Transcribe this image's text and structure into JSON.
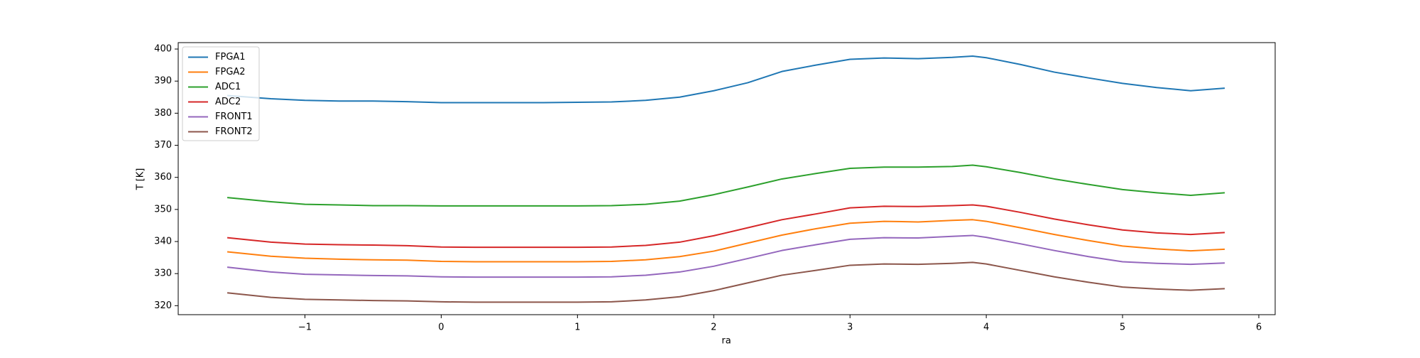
{
  "chart_data": {
    "type": "line",
    "xlabel": "ra",
    "ylabel": "T [K]",
    "x": [
      -1.57,
      -1.25,
      -1.0,
      -0.75,
      -0.5,
      -0.25,
      0,
      0.25,
      0.5,
      0.75,
      1.0,
      1.25,
      1.5,
      1.75,
      2.0,
      2.25,
      2.5,
      2.75,
      3.0,
      3.25,
      3.5,
      3.75,
      3.9,
      4.0,
      4.25,
      4.5,
      4.75,
      5.0,
      5.25,
      5.5,
      5.75
    ],
    "series": [
      {
        "name": "FPGA1",
        "color": "#1f77b4",
        "values": [
          385.5,
          384.5,
          384,
          383.8,
          383.8,
          383.6,
          383.3,
          383.3,
          383.3,
          383.3,
          383.4,
          383.5,
          384,
          385,
          387,
          389.5,
          393,
          395,
          396.8,
          397.2,
          397,
          397.4,
          397.8,
          397.3,
          395.2,
          392.8,
          391,
          389.3,
          388,
          387,
          387.8
        ]
      },
      {
        "name": "FPGA2",
        "color": "#ff7f0e",
        "values": [
          336.8,
          335.4,
          334.8,
          334.5,
          334.3,
          334.2,
          333.8,
          333.7,
          333.7,
          333.7,
          333.7,
          333.8,
          334.3,
          335.3,
          337,
          339.5,
          342,
          344,
          345.7,
          346.3,
          346.1,
          346.6,
          346.8,
          346.3,
          344.3,
          342.2,
          340.3,
          338.6,
          337.7,
          337.1,
          337.6
        ]
      },
      {
        "name": "ADC1",
        "color": "#2ca02c",
        "values": [
          353.7,
          352.4,
          351.6,
          351.4,
          351.2,
          351.2,
          351.1,
          351.1,
          351.1,
          351.1,
          351.1,
          351.2,
          351.6,
          352.6,
          354.6,
          357,
          359.5,
          361.2,
          362.8,
          363.2,
          363.2,
          363.4,
          363.8,
          363.3,
          361.5,
          359.5,
          357.8,
          356.2,
          355.2,
          354.4,
          355.2
        ]
      },
      {
        "name": "ADC2",
        "color": "#d62728",
        "values": [
          341.2,
          339.8,
          339.2,
          339,
          338.9,
          338.7,
          338.3,
          338.2,
          338.2,
          338.2,
          338.2,
          338.3,
          338.8,
          339.8,
          341.8,
          344.3,
          346.8,
          348.6,
          350.5,
          351,
          350.9,
          351.2,
          351.4,
          351,
          349.1,
          347,
          345.2,
          343.6,
          342.7,
          342.2,
          342.8
        ]
      },
      {
        "name": "FRONT1",
        "color": "#9467bd",
        "values": [
          332,
          330.5,
          329.8,
          329.6,
          329.4,
          329.3,
          329,
          328.9,
          328.9,
          328.9,
          328.9,
          329,
          329.5,
          330.5,
          332.3,
          334.7,
          337.2,
          339,
          340.7,
          341.2,
          341.1,
          341.6,
          341.9,
          341.3,
          339.3,
          337.2,
          335.3,
          333.7,
          333.2,
          332.9,
          333.3
        ]
      },
      {
        "name": "FRONT2",
        "color": "#8c564b",
        "values": [
          324,
          322.6,
          322,
          321.8,
          321.6,
          321.5,
          321.2,
          321.1,
          321.1,
          321.1,
          321.1,
          321.2,
          321.8,
          322.8,
          324.7,
          327.1,
          329.5,
          331,
          332.6,
          333,
          332.9,
          333.2,
          333.5,
          333,
          331,
          329,
          327.3,
          325.8,
          325.2,
          324.8,
          325.3
        ]
      }
    ],
    "xlim": [
      -1.93,
      6.12
    ],
    "xticks": [
      {
        "value": -1,
        "label": "−1"
      },
      0,
      1,
      2,
      3,
      4,
      5,
      6
    ],
    "ylim": [
      317.2,
      402
    ],
    "yticks": [
      320,
      330,
      340,
      350,
      360,
      370,
      380,
      390,
      400
    ],
    "legend": "upper left",
    "grid": false
  }
}
